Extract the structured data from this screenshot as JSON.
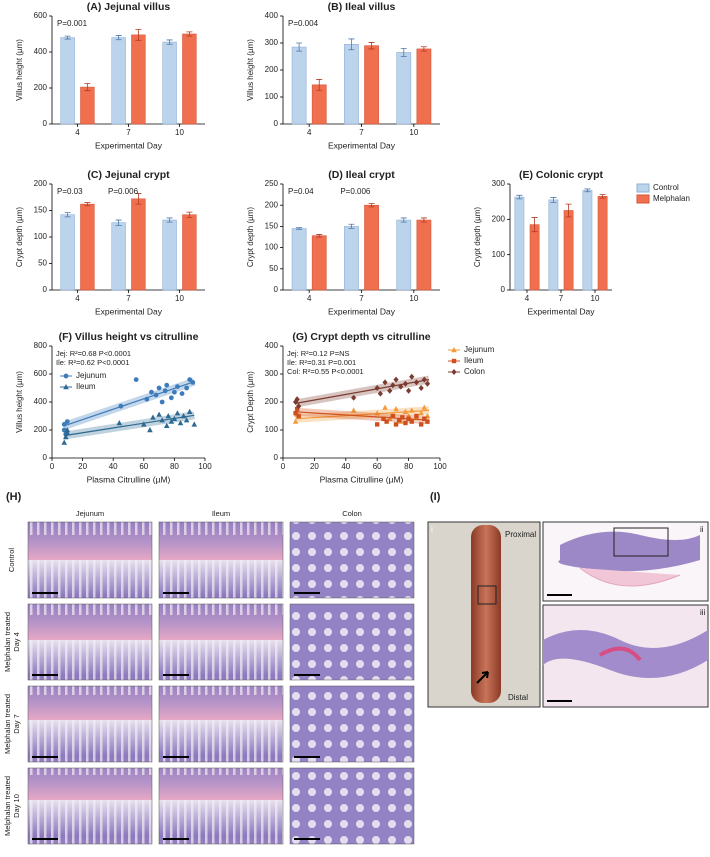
{
  "chart_data": [
    {
      "type": "bar",
      "title": "(A) Jejunal villus",
      "x_label": "Experimental Day",
      "y_label": "Villus height (µm)",
      "categories": [
        "4",
        "7",
        "10"
      ],
      "series": [
        {
          "name": "Control",
          "color": "#bcd3ec",
          "values": [
            480,
            480,
            455
          ],
          "errors": [
            8,
            12,
            12
          ]
        },
        {
          "name": "Melphalan",
          "color": "#ef6f4f",
          "values": [
            205,
            495,
            500
          ],
          "errors": [
            20,
            30,
            12
          ]
        }
      ],
      "ylim": [
        0,
        600
      ],
      "yticks": [
        0,
        200,
        400,
        600
      ],
      "annotations": [
        "P=0.001"
      ]
    },
    {
      "type": "bar",
      "title": "(B) Ileal villus",
      "x_label": "Experimental Day",
      "y_label": "Villus height (µm)",
      "categories": [
        "4",
        "7",
        "10"
      ],
      "series": [
        {
          "name": "Control",
          "color": "#bcd3ec",
          "values": [
            285,
            295,
            265
          ],
          "errors": [
            15,
            20,
            15
          ]
        },
        {
          "name": "Melphalan",
          "color": "#ef6f4f",
          "values": [
            145,
            290,
            278
          ],
          "errors": [
            20,
            12,
            8
          ]
        }
      ],
      "ylim": [
        0,
        400
      ],
      "yticks": [
        0,
        100,
        200,
        300,
        400
      ],
      "annotations": [
        "P=0.004"
      ]
    },
    {
      "type": "bar",
      "title": "(C) Jejunal crypt",
      "x_label": "Experimental Day",
      "y_label": "Crypt depth (µm)",
      "categories": [
        "4",
        "7",
        "10"
      ],
      "series": [
        {
          "name": "Control",
          "color": "#bcd3ec",
          "values": [
            142,
            127,
            132
          ],
          "errors": [
            4,
            5,
            4
          ]
        },
        {
          "name": "Melphalan",
          "color": "#ef6f4f",
          "values": [
            162,
            172,
            142
          ],
          "errors": [
            3,
            10,
            5
          ]
        }
      ],
      "ylim": [
        0,
        200
      ],
      "yticks": [
        0,
        50,
        100,
        150,
        200
      ],
      "annotations": [
        "P=0.03",
        "P=0.006"
      ]
    },
    {
      "type": "bar",
      "title": "(D) Ileal crypt",
      "x_label": "Experimental Day",
      "y_label": "Crypt depth (µm)",
      "categories": [
        "4",
        "7",
        "10"
      ],
      "series": [
        {
          "name": "Control",
          "color": "#bcd3ec",
          "values": [
            145,
            150,
            165
          ],
          "errors": [
            2,
            5,
            5
          ]
        },
        {
          "name": "Melphalan",
          "color": "#ef6f4f",
          "values": [
            128,
            200,
            165
          ],
          "errors": [
            3,
            4,
            5
          ]
        }
      ],
      "ylim": [
        0,
        250
      ],
      "yticks": [
        0,
        50,
        100,
        150,
        200,
        250
      ],
      "annotations": [
        "P=0.04",
        "P=0.006"
      ]
    },
    {
      "type": "bar",
      "title": "(E) Colonic crypt",
      "x_label": "Experimental Day",
      "y_label": "Crypt depth (µm)",
      "categories": [
        "4",
        "7",
        "10"
      ],
      "series": [
        {
          "name": "Control",
          "color": "#bcd3ec",
          "values": [
            263,
            255,
            282
          ],
          "errors": [
            5,
            7,
            4
          ]
        },
        {
          "name": "Melphalan",
          "color": "#ef6f4f",
          "values": [
            185,
            225,
            265
          ],
          "errors": [
            20,
            18,
            5
          ]
        }
      ],
      "ylim": [
        0,
        300
      ],
      "yticks": [
        0,
        100,
        200,
        300
      ],
      "legend": "right"
    },
    {
      "type": "scatter",
      "title": "(F) Villus height vs citrulline",
      "x_label": "Plasma Citrulline (µM)",
      "y_label": "Villus height (µm)",
      "xlim": [
        0,
        100
      ],
      "xticks": [
        0,
        20,
        40,
        60,
        80,
        100
      ],
      "ylim": [
        0,
        800
      ],
      "yticks": [
        0,
        200,
        400,
        600,
        800
      ],
      "annotations": [
        "Jej: R²=0.68 P<0.0001",
        "Ile: R²=0.62 P<0.0001"
      ],
      "legend": "upper left",
      "series": [
        {
          "name": "Jejunum",
          "color": "#3d7cba",
          "marker": "circle",
          "x": [
            8,
            8,
            9,
            10,
            45,
            55,
            62,
            65,
            68,
            70,
            72,
            74,
            75,
            78,
            80,
            82,
            85,
            88,
            90,
            92
          ],
          "values": [
            200,
            240,
            170,
            260,
            370,
            560,
            420,
            470,
            450,
            500,
            400,
            480,
            520,
            430,
            470,
            510,
            460,
            500,
            560,
            540
          ],
          "fit": {
            "x": [
              8,
              93
            ],
            "values": [
              230,
              545
            ]
          }
        },
        {
          "name": "Ileum",
          "color": "#2c6a93",
          "marker": "triangle",
          "x": [
            8,
            9,
            10,
            10,
            44,
            60,
            64,
            66,
            70,
            72,
            75,
            76,
            78,
            80,
            82,
            84,
            86,
            88,
            90,
            93
          ],
          "values": [
            110,
            150,
            180,
            200,
            250,
            240,
            200,
            290,
            310,
            270,
            230,
            300,
            260,
            280,
            320,
            250,
            300,
            270,
            330,
            240
          ],
          "fit": {
            "x": [
              8,
              93
            ],
            "values": [
              160,
              305
            ]
          }
        }
      ]
    },
    {
      "type": "scatter",
      "title": "(G) Crypt depth vs citrulline",
      "x_label": "Plasma Citrulline (µM)",
      "y_label": "Crypt Depth (µm)",
      "xlim": [
        0,
        100
      ],
      "xticks": [
        0,
        20,
        40,
        60,
        80,
        100
      ],
      "ylim": [
        0,
        400
      ],
      "yticks": [
        0,
        100,
        200,
        300,
        400
      ],
      "annotations": [
        "Jej: R²=0.12 P=NS",
        "Ile: R²=0.31 P=0.001",
        "Col: R²=0.55 P<0.0001"
      ],
      "legend": "right",
      "series": [
        {
          "name": "Jejunum",
          "color": "#f39a3c",
          "marker": "triangle",
          "x": [
            8,
            9,
            10,
            45,
            60,
            65,
            68,
            70,
            72,
            75,
            78,
            80,
            82,
            85,
            88,
            90,
            92
          ],
          "values": [
            130,
            155,
            150,
            170,
            160,
            180,
            140,
            150,
            175,
            130,
            165,
            150,
            170,
            145,
            160,
            180,
            150
          ],
          "fit": {
            "x": [
              8,
              93
            ],
            "values": [
              140,
              170
            ]
          }
        },
        {
          "name": "Ileum",
          "color": "#d0501c",
          "marker": "square",
          "x": [
            8,
            9,
            10,
            60,
            64,
            66,
            70,
            72,
            74,
            76,
            78,
            80,
            82,
            85,
            88,
            90,
            92
          ],
          "values": [
            160,
            175,
            150,
            120,
            140,
            130,
            150,
            120,
            135,
            145,
            125,
            140,
            130,
            150,
            120,
            140,
            130
          ],
          "fit": {
            "x": [
              8,
              93
            ],
            "values": [
              165,
              135
            ]
          }
        },
        {
          "name": "Colon",
          "color": "#7b3b2e",
          "marker": "diamond",
          "x": [
            8,
            9,
            10,
            45,
            60,
            62,
            65,
            68,
            70,
            72,
            75,
            78,
            80,
            82,
            85,
            88,
            90,
            92
          ],
          "values": [
            200,
            210,
            185,
            215,
            250,
            230,
            270,
            240,
            260,
            280,
            255,
            265,
            240,
            290,
            270,
            250,
            280,
            265
          ],
          "fit": {
            "x": [
              8,
              93
            ],
            "values": [
              195,
              280
            ]
          }
        }
      ]
    }
  ],
  "histology": {
    "label": "(H)",
    "columns": [
      "Jejunum",
      "Ileum",
      "Colon"
    ],
    "rows": [
      [
        "Control"
      ],
      [
        "Melphalan treated",
        "Day 4"
      ],
      [
        "Melphalan treated",
        "Day 7"
      ],
      [
        "Melphalan treated",
        "Day 10"
      ]
    ]
  },
  "gross": {
    "label": "(I)",
    "subpanels": [
      "i",
      "ii",
      "iii"
    ],
    "annotations": [
      "Proximal",
      "Distal"
    ]
  }
}
